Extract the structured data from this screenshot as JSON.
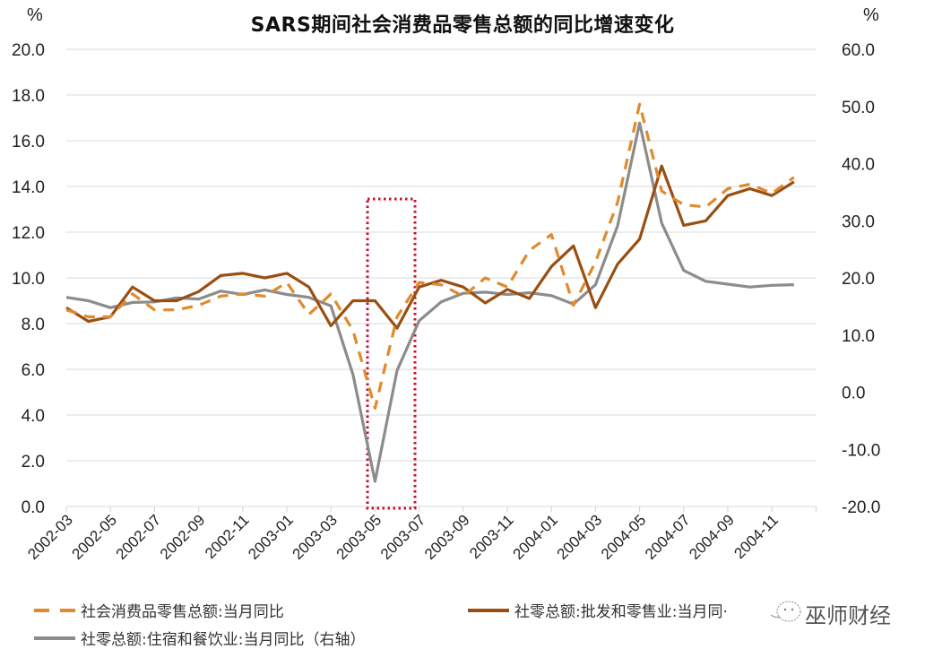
{
  "title": "SARS期间社会消费品零售总额的同比增速变化",
  "units": {
    "left": "%",
    "right": "%"
  },
  "watermark": "巫师财经",
  "legend": [
    {
      "label": "社会消费品零售总额:当月同比",
      "color": "#E08A2E",
      "style": "dashed"
    },
    {
      "label": "社零总额:批发和零售业:当月同·",
      "color": "#9A4F12",
      "style": "solid"
    },
    {
      "label": "社零总额:住宿和餐饮业:当月同比（右轴）",
      "color": "#8C8C8C",
      "style": "solid"
    }
  ],
  "highlight_box": {
    "from": "2003-04",
    "to": "2003-06",
    "color": "#C8102E",
    "style": "dotted"
  },
  "chart_data": {
    "type": "line",
    "title": "SARS期间社会消费品零售总额的同比增速变化",
    "xlabel": "",
    "ylabel": "%",
    "y2label": "%",
    "ylim": [
      0,
      20
    ],
    "y2lim": [
      -20,
      60
    ],
    "yticks": [
      "0.0",
      "2.0",
      "4.0",
      "6.0",
      "8.0",
      "10.0",
      "12.0",
      "14.0",
      "16.0",
      "18.0",
      "20.0"
    ],
    "y2ticks": [
      "-20.0",
      "-10.0",
      "0.0",
      "10.0",
      "20.0",
      "30.0",
      "40.0",
      "50.0",
      "60.0"
    ],
    "xtick_labels": [
      "2002-03",
      "2002-05",
      "2002-07",
      "2002-09",
      "2002-11",
      "2003-01",
      "2003-03",
      "2003-05",
      "2003-07",
      "2003-09",
      "2003-11",
      "2004-01",
      "2004-03",
      "2004-05",
      "2004-07",
      "2004-09",
      "2004-11"
    ],
    "grid": "horizontal",
    "legend_position": "bottom",
    "x": [
      "2002-03",
      "2002-04",
      "2002-05",
      "2002-06",
      "2002-07",
      "2002-08",
      "2002-09",
      "2002-10",
      "2002-11",
      "2002-12",
      "2003-01",
      "2003-02",
      "2003-03",
      "2003-04",
      "2003-05",
      "2003-06",
      "2003-07",
      "2003-08",
      "2003-09",
      "2003-10",
      "2003-11",
      "2003-12",
      "2004-01",
      "2004-02",
      "2004-03",
      "2004-04",
      "2004-05",
      "2004-06",
      "2004-07",
      "2004-08",
      "2004-09",
      "2004-10",
      "2004-11",
      "2004-12"
    ],
    "series": [
      {
        "name": "社会消费品零售总额:当月同比",
        "axis": "left",
        "style": "dashed",
        "color": "#E08A2E",
        "values": [
          8.6,
          8.3,
          8.3,
          9.3,
          8.6,
          8.6,
          8.8,
          9.2,
          9.3,
          9.2,
          9.8,
          8.4,
          9.3,
          7.7,
          4.3,
          8.3,
          9.8,
          9.7,
          9.2,
          10.0,
          9.6,
          11.2,
          11.9,
          8.8,
          10.7,
          13.3,
          17.6,
          13.8,
          13.2,
          13.1,
          13.9,
          14.1,
          13.7,
          14.4
        ]
      },
      {
        "name": "社零总额:批发和零售业:当月同比",
        "axis": "left",
        "style": "solid",
        "color": "#9A4F12",
        "values": [
          8.7,
          8.1,
          8.3,
          9.6,
          9.0,
          9.0,
          9.4,
          10.1,
          10.2,
          10.0,
          10.2,
          9.6,
          7.9,
          9.0,
          9.0,
          7.8,
          9.6,
          9.9,
          9.6,
          8.9,
          9.5,
          9.1,
          10.5,
          11.4,
          8.7,
          10.6,
          11.7,
          14.9,
          12.3,
          12.5,
          13.6,
          13.9,
          13.6,
          14.2
        ]
      },
      {
        "name": "社零总额:住宿和餐饮业:当月同比（右轴）",
        "axis": "right",
        "style": "solid",
        "color": "#8C8C8C",
        "values": [
          16.6,
          16.0,
          14.8,
          15.7,
          15.8,
          16.5,
          16.3,
          17.7,
          17.1,
          17.9,
          17.1,
          16.6,
          15.1,
          3.1,
          -15.6,
          3.8,
          12.5,
          15.8,
          17.3,
          17.5,
          17.1,
          17.4,
          16.9,
          15.4,
          18.8,
          29.1,
          47.1,
          29.6,
          21.3,
          19.4,
          18.9,
          18.4,
          18.7,
          18.8
        ]
      }
    ]
  }
}
